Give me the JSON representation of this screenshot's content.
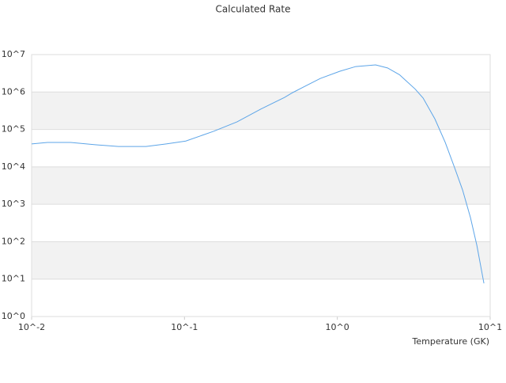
{
  "chart_data": {
    "type": "line",
    "title": "Calculated Rate",
    "x_label": "Temperature (GK)",
    "x": [
      0.01,
      0.0127,
      0.018,
      0.026,
      0.037,
      0.056,
      0.076,
      0.102,
      0.155,
      0.221,
      0.316,
      0.452,
      0.509,
      0.773,
      1.04,
      1.32,
      1.78,
      2.13,
      2.55,
      3.23,
      3.64,
      4.35,
      5.08,
      5.86,
      6.6,
      7.43,
      8.18,
      9.1
    ],
    "values": [
      41000,
      45000,
      45000,
      39000,
      35000,
      35000,
      41000,
      49000,
      89000,
      160000,
      350000,
      720000,
      960000,
      2300000,
      3600000,
      4800000,
      5300000,
      4400000,
      2900000,
      1200000,
      690000,
      190000,
      45000,
      9300,
      2400,
      440,
      80,
      7.7
    ],
    "color": "#5da5e8",
    "xscale": "log",
    "yscale": "log",
    "xlim": [
      0.01,
      10
    ],
    "ylim": [
      1,
      10000000
    ],
    "xticks": [
      {
        "value": 0.01,
        "label": "10^-2"
      },
      {
        "value": 0.1,
        "label": "10^-1"
      },
      {
        "value": 1,
        "label": "10^0"
      },
      {
        "value": 10,
        "label": "10^1"
      }
    ],
    "yticks": [
      {
        "value": 1,
        "label": "10^0"
      },
      {
        "value": 10,
        "label": "10^1"
      },
      {
        "value": 100,
        "label": "10^2"
      },
      {
        "value": 1000,
        "label": "10^3"
      },
      {
        "value": 10000,
        "label": "10^4"
      },
      {
        "value": 100000,
        "label": "10^5"
      },
      {
        "value": 1000000,
        "label": "10^6"
      },
      {
        "value": 10000000,
        "label": "10^7"
      }
    ],
    "grid": true
  }
}
